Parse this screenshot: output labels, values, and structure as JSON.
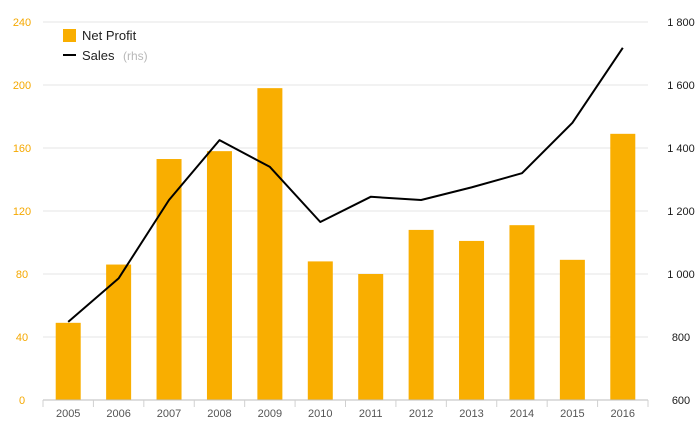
{
  "chart_data": {
    "type": "bar",
    "categories": [
      "2005",
      "2006",
      "2007",
      "2008",
      "2009",
      "2010",
      "2011",
      "2012",
      "2013",
      "2014",
      "2015",
      "2016"
    ],
    "series": [
      {
        "name": "Net Profit",
        "type": "bar",
        "axis": "left",
        "color": "#f9ae00",
        "values": [
          49,
          86,
          153,
          158,
          198,
          88,
          80,
          108,
          101,
          111,
          89,
          169
        ]
      },
      {
        "name": "Sales",
        "type": "line",
        "axis": "right",
        "color": "#000000",
        "values": [
          848,
          986,
          1235,
          1425,
          1340,
          1165,
          1245,
          1235,
          1275,
          1320,
          1480,
          1718
        ]
      }
    ],
    "ylim_left": [
      0,
      240
    ],
    "yticks_left": [
      "0",
      "40",
      "80",
      "120",
      "160",
      "200",
      "240"
    ],
    "ylim_right": [
      600,
      1800
    ],
    "yticks_right": [
      "600",
      "800",
      "1 000",
      "1 200",
      "1 400",
      "1 600",
      "1 800"
    ],
    "grid": true,
    "legend": {
      "placement": "top-left",
      "entries": [
        {
          "label": "Net Profit",
          "suffix": ""
        },
        {
          "label": "Sales",
          "suffix": "(rhs)"
        }
      ]
    }
  }
}
